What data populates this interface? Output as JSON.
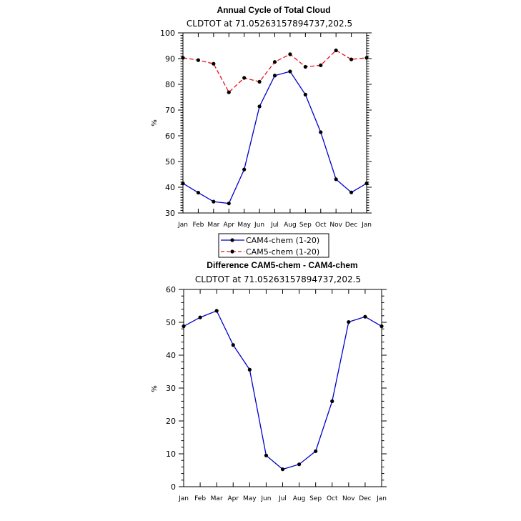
{
  "chart_data": [
    {
      "type": "line",
      "title": "Annual Cycle of Total Cloud",
      "subtitle": "CLDTOT at 71.05263157894737,202.5",
      "ylabel": "%",
      "xlabel": "",
      "categories": [
        "Jan",
        "Feb",
        "Mar",
        "Apr",
        "May",
        "Jun",
        "Jul",
        "Aug",
        "Sep",
        "Oct",
        "Nov",
        "Dec",
        "Jan"
      ],
      "ylim": [
        30,
        100
      ],
      "yticks": [
        30,
        40,
        50,
        60,
        70,
        80,
        90,
        100
      ],
      "series": [
        {
          "name": "CAM4-chem (1-20)",
          "color": "#0000cc",
          "dash": "solid",
          "values": [
            41.5,
            37.9,
            34.4,
            33.7,
            46.9,
            71.4,
            83.4,
            85.0,
            76.0,
            61.4,
            43.1,
            38.0,
            41.5
          ]
        },
        {
          "name": "CAM5-chem (1-20)",
          "color": "#e8101a",
          "dash": "dashed",
          "values": [
            90.3,
            89.4,
            88.0,
            76.9,
            82.5,
            81.0,
            88.7,
            91.7,
            86.8,
            87.4,
            93.2,
            89.7,
            90.3
          ]
        }
      ],
      "legend": "bottom-center"
    },
    {
      "type": "line",
      "title": "Difference CAM5-chem - CAM4-chem",
      "subtitle": "CLDTOT at 71.05263157894737,202.5",
      "ylabel": "%",
      "xlabel": "",
      "categories": [
        "Jan",
        "Feb",
        "Mar",
        "Apr",
        "May",
        "Jun",
        "Jul",
        "Aug",
        "Sep",
        "Oct",
        "Nov",
        "Dec",
        "Jan"
      ],
      "ylim": [
        0,
        60
      ],
      "yticks": [
        0,
        10,
        20,
        30,
        40,
        50,
        60
      ],
      "series": [
        {
          "color": "#0000cc",
          "dash": "solid",
          "values": [
            48.8,
            51.5,
            53.5,
            43.1,
            35.6,
            9.5,
            5.3,
            6.8,
            10.8,
            26.0,
            50.1,
            51.7,
            48.8
          ]
        }
      ]
    }
  ]
}
